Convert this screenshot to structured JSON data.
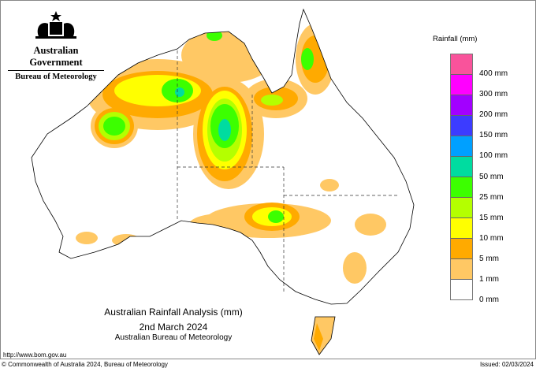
{
  "logo": {
    "government": "Australian Government",
    "bureau": "Bureau of Meteorology"
  },
  "legend": {
    "title": "Rainfall (mm)",
    "bands": [
      "#f9539b",
      "#ff00ff",
      "#a200ff",
      "#3c3cff",
      "#00a0ff",
      "#00dca0",
      "#3cff00",
      "#b4ff00",
      "#ffff00",
      "#ffaa00",
      "#ffc864",
      "#ffffff"
    ],
    "labels": [
      "400 mm",
      "300 mm",
      "200 mm",
      "150 mm",
      "100 mm",
      "50 mm",
      "25 mm",
      "15 mm",
      "10 mm",
      "5 mm",
      "1 mm",
      "0 mm"
    ]
  },
  "title": {
    "line1": "Australian Rainfall Analysis (mm)",
    "line2": "2nd March 2024",
    "line3": "Australian Bureau of Meteorology"
  },
  "footer": {
    "url": "http://www.bom.gov.au",
    "copyright": "© Commonwealth of Australia 2024, Bureau of Meteorology",
    "issued": "Issued: 02/03/2024"
  }
}
